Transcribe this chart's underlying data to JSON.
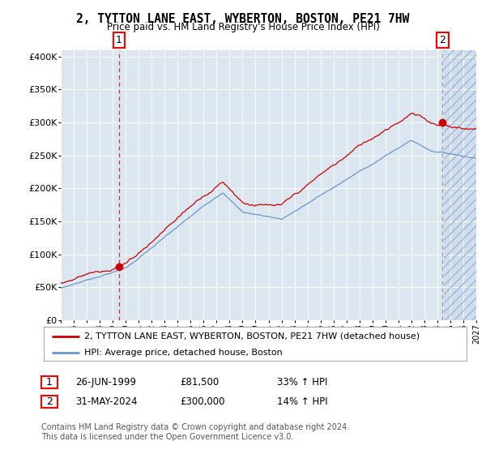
{
  "title": "2, TYTTON LANE EAST, WYBERTON, BOSTON, PE21 7HW",
  "subtitle": "Price paid vs. HM Land Registry's House Price Index (HPI)",
  "legend_line1": "2, TYTTON LANE EAST, WYBERTON, BOSTON, PE21 7HW (detached house)",
  "legend_line2": "HPI: Average price, detached house, Boston",
  "sale1_date": "26-JUN-1999",
  "sale1_price": "£81,500",
  "sale1_hpi": "33% ↑ HPI",
  "sale2_date": "31-MAY-2024",
  "sale2_price": "£300,000",
  "sale2_hpi": "14% ↑ HPI",
  "footer": "Contains HM Land Registry data © Crown copyright and database right 2024.\nThis data is licensed under the Open Government Licence v3.0.",
  "ylabel_ticks": [
    "£0",
    "£50K",
    "£100K",
    "£150K",
    "£200K",
    "£250K",
    "£300K",
    "£350K",
    "£400K"
  ],
  "ytick_values": [
    0,
    50000,
    100000,
    150000,
    200000,
    250000,
    300000,
    350000,
    400000
  ],
  "background_color": "#dce6f1",
  "red_line_color": "#cc0000",
  "blue_line_color": "#6699cc",
  "sale1_year": 1999.49,
  "sale1_value": 81500,
  "sale2_year": 2024.41,
  "sale2_value": 300000,
  "xmin": 1995,
  "xmax": 2027,
  "ymin": 0,
  "ymax": 410000
}
